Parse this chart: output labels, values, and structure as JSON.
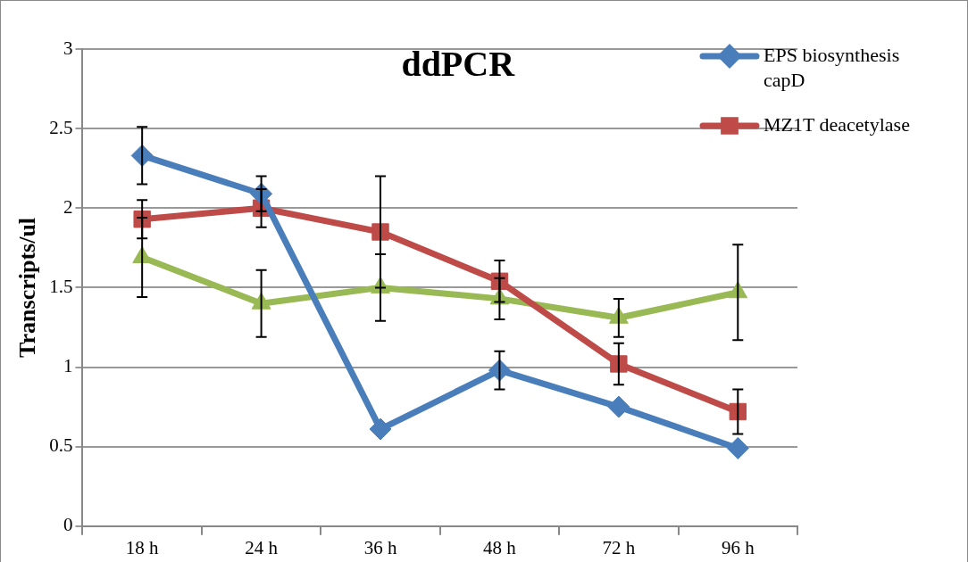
{
  "chart_data": {
    "type": "line",
    "title": "ddPCR",
    "ylabel": "Transcripts/ul",
    "categories": [
      "18 h",
      "24 h",
      "36 h",
      "48 h",
      "72 h",
      "96 h"
    ],
    "series": [
      {
        "name": "EPS biosynthesis capD",
        "color": "#4a7ebb",
        "marker": "diamond",
        "values": [
          2.33,
          2.09,
          0.61,
          0.98,
          0.75,
          0.49
        ],
        "errors": [
          0.18,
          0.11,
          null,
          0.12,
          null,
          null
        ]
      },
      {
        "name": "MZ1T deacetylase",
        "color": "#be4b48",
        "marker": "square",
        "values": [
          1.93,
          2.0,
          1.85,
          1.54,
          1.02,
          0.72
        ],
        "errors": [
          0.12,
          0.12,
          0.35,
          0.13,
          0.13,
          0.14
        ]
      },
      {
        "color": "#98b954",
        "marker": "triangle",
        "values": [
          1.69,
          1.4,
          1.5,
          1.43,
          1.31,
          1.47
        ],
        "errors": [
          0.25,
          0.21,
          0.21,
          0.13,
          0.12,
          0.3
        ]
      }
    ],
    "ylim": [
      0,
      3
    ],
    "yticks": [
      0,
      0.5,
      1,
      1.5,
      2,
      2.5,
      3
    ],
    "grid": "y",
    "legend": "top right",
    "line_style": "solid"
  }
}
